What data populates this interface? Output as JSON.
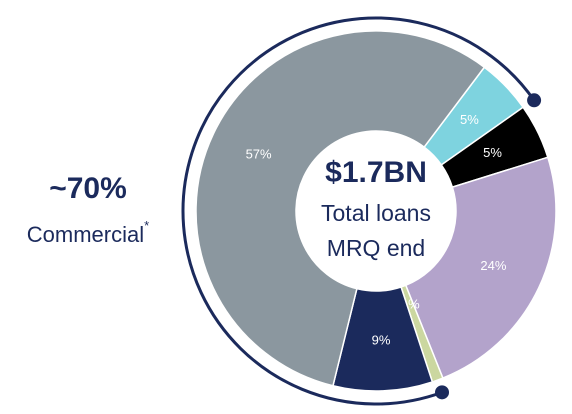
{
  "chart_data": {
    "type": "pie",
    "values": [
      5,
      5,
      24,
      1,
      9,
      57
    ],
    "value_labels": [
      "5%",
      "5%",
      "24%",
      "1%",
      "9%",
      "57%"
    ],
    "colors": [
      "#7ed3df",
      "#000000",
      "#b3a3cb",
      "#cbd7a0",
      "#1b2a5c",
      "#8b979f"
    ]
  },
  "center": {
    "value": "$1.7BN",
    "lines": [
      "Total loans",
      "MRQ end"
    ]
  },
  "callout": {
    "value": "~70%",
    "label": "Commercial",
    "note": "*"
  }
}
